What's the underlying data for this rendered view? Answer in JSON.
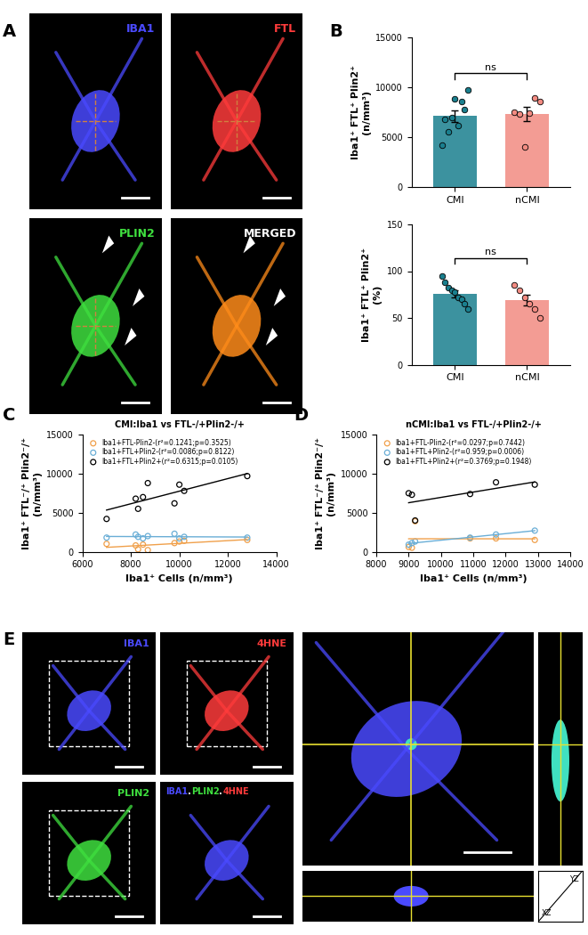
{
  "panel_labels": [
    "A",
    "B",
    "C",
    "D",
    "E"
  ],
  "images": {
    "A": [
      {
        "label": "IBA1",
        "color": "#4a4aff"
      },
      {
        "label": "FTL",
        "color": "#ff3b3b"
      },
      {
        "label": "PLIN2",
        "color": "#3fe03f"
      },
      {
        "label": "MERGED",
        "color": "#ffffff"
      }
    ],
    "E": {
      "panels": [
        {
          "label": "IBA1",
          "color": "#4a4aff"
        },
        {
          "label": "4HNE",
          "color": "#ff3b3b"
        },
        {
          "label": "PLIN2",
          "color": "#3fe03f"
        }
      ],
      "merged_parts": [
        {
          "text": "IBA1",
          "color": "#4a4aff"
        },
        {
          "text": "PLIN2",
          "color": "#3fe03f"
        },
        {
          "text": "4HNE",
          "color": "#ff3b3b"
        }
      ],
      "separator": ".",
      "orthogonal_labels": [
        "YZ",
        "XZ"
      ]
    }
  },
  "chart_data": [
    {
      "type": "bar",
      "ylabel": "Iba1⁺ FTL⁺ Plin2⁺\n(n/mm³)",
      "categories": [
        "CMI",
        "nCMI"
      ],
      "values": [
        7100,
        7300
      ],
      "errors": [
        550,
        700
      ],
      "points": [
        [
          4200,
          6800,
          5500,
          7000,
          8800,
          6200,
          8600,
          7800,
          9700
        ],
        [
          7500,
          7300,
          4000,
          7400,
          8900,
          8600
        ]
      ],
      "colors": [
        "#1a7f8e",
        "#f28b82"
      ],
      "annotation": "ns",
      "ylim": [
        0,
        15000
      ],
      "yticks": [
        0,
        5000,
        10000,
        15000
      ]
    },
    {
      "type": "bar",
      "ylabel": "Iba1⁺ FTL⁺ Plin2⁺\n(%)",
      "categories": [
        "CMI",
        "nCMI"
      ],
      "values": [
        76,
        69
      ],
      "errors": [
        4,
        6
      ],
      "points": [
        [
          95,
          88,
          82,
          80,
          78,
          72,
          70,
          65,
          60
        ],
        [
          85,
          80,
          72,
          65,
          60,
          50
        ]
      ],
      "colors": [
        "#1a7f8e",
        "#f28b82"
      ],
      "annotation": "ns",
      "ylim": [
        0,
        150
      ],
      "yticks": [
        0,
        50,
        100,
        150
      ]
    },
    {
      "type": "scatter",
      "title": "CMI:Iba1 vs FTL-/+Plin2-/+",
      "xlabel": "Iba1⁺ Cells (n/mm³)",
      "ylabel": "Iba1⁺ FTL⁻/⁺ Plin2⁻/⁺\n(n/mm³)",
      "xlim": [
        6000,
        14000
      ],
      "xticks": [
        6000,
        8000,
        10000,
        12000,
        14000
      ],
      "ylim": [
        0,
        15000
      ],
      "yticks": [
        0,
        5000,
        10000,
        15000
      ],
      "legend": "upper left",
      "series": [
        {
          "name": "Iba1+FTL-Plin2-(r²=0.1241;p=0.3525)",
          "color": "#f0a04b",
          "marker": "o",
          "x": [
            7000,
            8200,
            8300,
            8500,
            8700,
            9800,
            10000,
            10200,
            12800
          ],
          "values": [
            1000,
            800,
            300,
            900,
            200,
            1100,
            1300,
            1400,
            1500
          ]
        },
        {
          "name": "Iba1+FTL+Plin2-(r²=0.0086;p=0.8122)",
          "color": "#6aaed6",
          "marker": "o",
          "x": [
            7000,
            8200,
            8300,
            8500,
            8700,
            9800,
            10000,
            10200,
            12800
          ],
          "values": [
            1800,
            2200,
            1900,
            1700,
            2000,
            2300,
            1700,
            1900,
            1800
          ]
        },
        {
          "name": "Iba1+FTL+Plin2+(r²=0.6315;p=0.0105)",
          "color": "#000000",
          "marker": "o",
          "x": [
            7000,
            8200,
            8300,
            8500,
            8700,
            9800,
            10000,
            10200,
            12800
          ],
          "values": [
            4200,
            6800,
            5500,
            7000,
            8800,
            6200,
            8600,
            7800,
            9700
          ]
        }
      ]
    },
    {
      "type": "scatter",
      "title": "nCMI:Iba1 vs FTL-/+Plin2-/+",
      "xlabel": "Iba1⁺ Cells (n/mm³)",
      "ylabel": "Iba1⁺ FTL⁻/⁺ Plin2⁻/⁺\n(n/mm³)",
      "xlim": [
        8000,
        14000
      ],
      "xticks": [
        8000,
        9000,
        10000,
        11000,
        12000,
        13000,
        14000
      ],
      "ylim": [
        0,
        15000
      ],
      "yticks": [
        0,
        5000,
        10000,
        15000
      ],
      "legend": "upper left",
      "series": [
        {
          "name": "Iba1+FTL-Plin2-(r²=0.0297;p=0.7442)",
          "color": "#f0a04b",
          "marker": "o",
          "x": [
            9000,
            9100,
            9200,
            10900,
            11700,
            12900
          ],
          "values": [
            600,
            500,
            3900,
            1700,
            1700,
            1500
          ]
        },
        {
          "name": "Iba1+FTL+Plin2-(r²=0.959;p=0.0006)",
          "color": "#6aaed6",
          "marker": "o",
          "x": [
            9000,
            9100,
            9200,
            10900,
            11700,
            12900
          ],
          "values": [
            900,
            1100,
            1300,
            1800,
            2200,
            2700
          ]
        },
        {
          "name": "Iba1+FTL+Plin2+(r²=0.3769;p=0.1948)",
          "color": "#000000",
          "marker": "o",
          "x": [
            9000,
            9100,
            9200,
            10900,
            11700,
            12900
          ],
          "values": [
            7500,
            7300,
            4000,
            7400,
            8900,
            8600
          ]
        }
      ]
    }
  ]
}
